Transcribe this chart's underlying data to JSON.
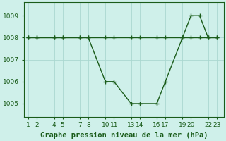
{
  "title": "Graphe pression niveau de la mer (hPa)",
  "bg_color": "#cff0ea",
  "line_color": "#1a5c1a",
  "marker_color": "#1a5c1a",
  "grid_color": "#aad8d0",
  "x_values": [
    1,
    2,
    4,
    5,
    7,
    8,
    10,
    11,
    13,
    14,
    16,
    17,
    19,
    20,
    21,
    22,
    23
  ],
  "y_values": [
    1008,
    1008,
    1008,
    1008,
    1008,
    1008,
    1006,
    1006,
    1005,
    1005,
    1005,
    1006,
    1008,
    1009,
    1009,
    1008,
    1008
  ],
  "x_ref_values": [
    1,
    2,
    4,
    5,
    7,
    8,
    10,
    11,
    13,
    14,
    16,
    17,
    19,
    20,
    21,
    22,
    23
  ],
  "y_ref_values": [
    1008,
    1008,
    1008,
    1008,
    1008,
    1008,
    1008,
    1008,
    1008,
    1008,
    1008,
    1008,
    1008,
    1008,
    1008,
    1008,
    1008
  ],
  "xtick_positions": [
    1,
    2,
    4,
    5,
    7,
    8,
    10,
    11,
    13,
    14,
    16,
    17,
    19,
    20,
    22,
    23
  ],
  "xtick_labels": [
    "1",
    "2",
    "4",
    "5",
    "7",
    "8",
    "10",
    "11",
    "13",
    "14",
    "16",
    "17",
    "19",
    "20",
    "22",
    "23"
  ],
  "yticks": [
    1005,
    1006,
    1007,
    1008,
    1009
  ],
  "ylim": [
    1004.4,
    1009.6
  ],
  "xlim": [
    0.5,
    23.8
  ],
  "title_fontsize": 7.5,
  "tick_fontsize": 6.5,
  "linewidth": 1.0,
  "markersize": 4
}
